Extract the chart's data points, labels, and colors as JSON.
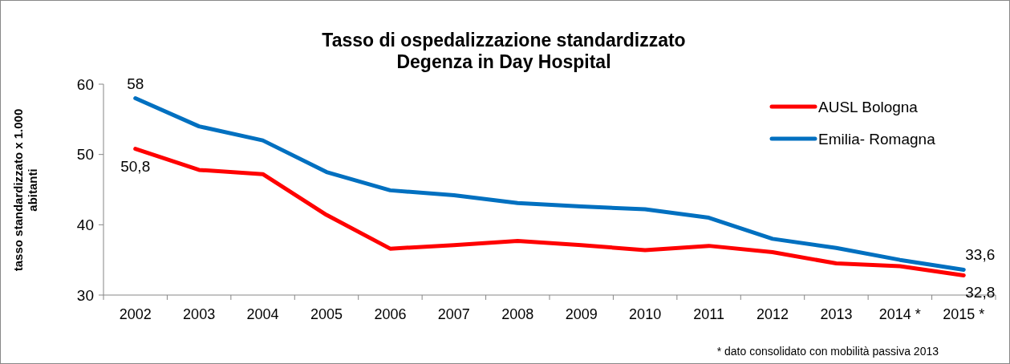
{
  "chart_data": {
    "type": "line",
    "title": "Tasso di ospedalizzazione standardizzato\nDegenza in Day Hospital",
    "ylabel": "tasso standardizzato x 1.000\nabitanti",
    "categories": [
      "2002",
      "2003",
      "2004",
      "2005",
      "2006",
      "2007",
      "2008",
      "2009",
      "2010",
      "2011",
      "2012",
      "2013",
      "2014 *",
      "2015 *"
    ],
    "series": [
      {
        "name": "AUSL Bologna",
        "color": "#ff0000",
        "values": [
          50.8,
          47.8,
          47.2,
          41.4,
          36.6,
          37.1,
          37.7,
          37.1,
          36.4,
          37.0,
          36.1,
          34.5,
          34.1,
          32.8
        ],
        "value_labels": [
          "50,8",
          null,
          null,
          null,
          null,
          null,
          null,
          null,
          null,
          null,
          null,
          null,
          null,
          "32,8"
        ]
      },
      {
        "name": "Emilia- Romagna",
        "color": "#0070c0",
        "values": [
          58,
          54,
          52,
          47.5,
          44.9,
          44.2,
          43.1,
          42.6,
          42.2,
          41.0,
          38.0,
          36.7,
          35.0,
          33.6
        ],
        "value_labels": [
          "58",
          null,
          null,
          null,
          null,
          null,
          null,
          null,
          null,
          null,
          null,
          null,
          null,
          "33,6"
        ]
      }
    ],
    "ylim": [
      30,
      60
    ],
    "yticks": [
      30,
      40,
      50,
      60
    ],
    "grid": false,
    "legend": "top right",
    "marker": "none",
    "line_style": "solid",
    "annotations": [
      "* dato consolidato con mobilità passiva 2013"
    ]
  }
}
